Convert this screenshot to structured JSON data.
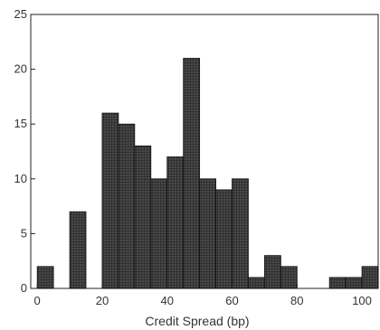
{
  "chart_data": {
    "type": "bar",
    "title": "",
    "xlabel": "Credit Spread (bp)",
    "ylabel": "",
    "xlim": [
      -2,
      105
    ],
    "ylim": [
      0,
      25
    ],
    "xticks": [
      "0",
      "20",
      "40",
      "60",
      "80",
      "100"
    ],
    "yticks": [
      "0",
      "5",
      "10",
      "15",
      "20",
      "25"
    ],
    "bin_width": 5,
    "grid": false,
    "bins": [
      {
        "start": 0,
        "count": 2
      },
      {
        "start": 10,
        "count": 7
      },
      {
        "start": 20,
        "count": 16
      },
      {
        "start": 25,
        "count": 15
      },
      {
        "start": 30,
        "count": 13
      },
      {
        "start": 35,
        "count": 10
      },
      {
        "start": 40,
        "count": 12
      },
      {
        "start": 45,
        "count": 21
      },
      {
        "start": 50,
        "count": 10
      },
      {
        "start": 55,
        "count": 9
      },
      {
        "start": 60,
        "count": 10
      },
      {
        "start": 65,
        "count": 1
      },
      {
        "start": 70,
        "count": 3
      },
      {
        "start": 75,
        "count": 2
      },
      {
        "start": 90,
        "count": 1
      },
      {
        "start": 95,
        "count": 1
      },
      {
        "start": 100,
        "count": 2
      }
    ],
    "bar_color": "#3a3a3a",
    "bar_stroke": "#111111"
  }
}
